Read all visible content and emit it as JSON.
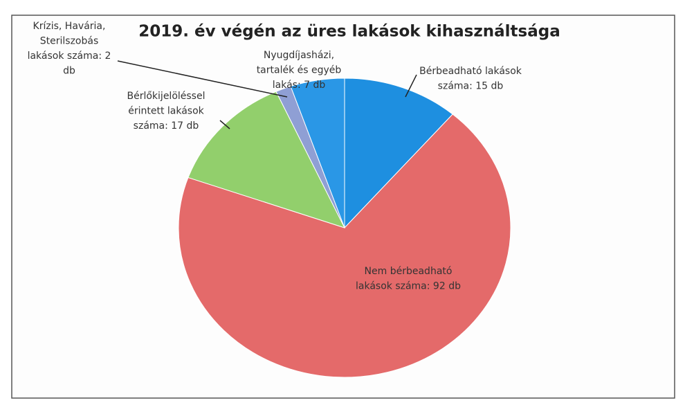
{
  "chart_data": {
    "type": "pie",
    "title": "2019. év végén az üres lakások kihasználtsága",
    "labels": [
      [
        "Bérbeadható lakások",
        "száma: 15 db"
      ],
      [
        "Nem bérbeadható",
        "lakások száma: 92 db"
      ],
      [
        "Bérlőkijelöléssel",
        "érintett lakások",
        "száma: 17 db"
      ],
      [
        "Krízis, Havária,",
        "Sterilszobás",
        "lakások száma: 2",
        "db"
      ],
      [
        "Nyugdíjasházi,",
        "tartalék és egyéb",
        "lakás: 7 db"
      ]
    ],
    "values": [
      15,
      92,
      17,
      2,
      7
    ],
    "colors": [
      "#1e8fe0",
      "#e46a6a",
      "#92cf6c",
      "#8f9fd4",
      "#2a97e6"
    ]
  }
}
